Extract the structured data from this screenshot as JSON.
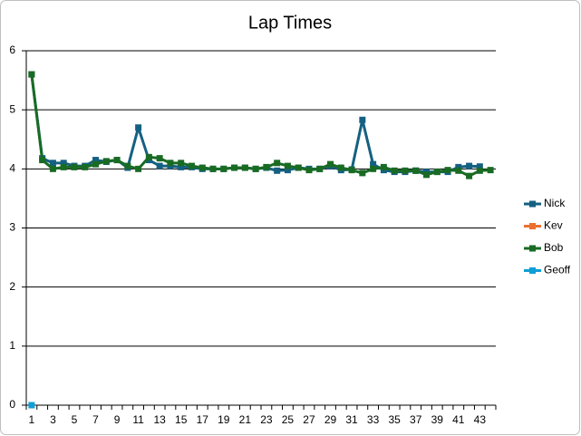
{
  "chart_data": {
    "type": "line",
    "title": "Lap Times",
    "categories": [
      1,
      null,
      3,
      null,
      5,
      null,
      7,
      null,
      9,
      null,
      11,
      null,
      13,
      null,
      15,
      null,
      17,
      null,
      19,
      null,
      21,
      null,
      23,
      null,
      25,
      null,
      27,
      null,
      29,
      null,
      31,
      null,
      33,
      null,
      35,
      null,
      37,
      null,
      39,
      null,
      41,
      null,
      43,
      null
    ],
    "series": [
      {
        "name": "Nick",
        "color": "#156082",
        "values": [
          5.6,
          4.18,
          4.1,
          4.1,
          4.05,
          4.05,
          4.15,
          4.12,
          4.15,
          4.02,
          4.7,
          4.15,
          4.05,
          4.05,
          4.03,
          4.03,
          4.0,
          4.0,
          4.0,
          4.02,
          4.02,
          4.0,
          4.02,
          3.97,
          3.98,
          4.02,
          4.0,
          4.0,
          4.05,
          3.98,
          3.99,
          4.83,
          4.08,
          3.98,
          3.95,
          3.95,
          3.97,
          3.95,
          3.95,
          3.95,
          4.03,
          4.05,
          4.04,
          null
        ]
      },
      {
        "name": "Kev",
        "color": "#E97132",
        "values": [
          null,
          null,
          null,
          null,
          null,
          null,
          null,
          null,
          null,
          null,
          null,
          null,
          null,
          null,
          null,
          null,
          null,
          null,
          null,
          null,
          null,
          null,
          null,
          null,
          null,
          null,
          null,
          null,
          null,
          null,
          null,
          null,
          null,
          null,
          null,
          null,
          null,
          null,
          null,
          null,
          null,
          null,
          null,
          null
        ]
      },
      {
        "name": "Bob",
        "color": "#196B24",
        "values": [
          5.6,
          4.15,
          4.0,
          4.03,
          4.03,
          4.03,
          4.08,
          4.13,
          4.15,
          4.05,
          4.0,
          4.2,
          4.18,
          4.1,
          4.1,
          4.05,
          4.02,
          4.0,
          4.0,
          4.02,
          4.02,
          4.0,
          4.03,
          4.1,
          4.05,
          4.02,
          3.98,
          4.0,
          4.08,
          4.02,
          3.98,
          3.93,
          4.0,
          4.03,
          3.97,
          3.97,
          3.97,
          3.9,
          3.95,
          3.98,
          3.97,
          3.88,
          3.97,
          3.98
        ]
      },
      {
        "name": "Geoff",
        "color": "#0F9ED5",
        "values": [
          0,
          null,
          null,
          null,
          null,
          null,
          null,
          null,
          null,
          null,
          null,
          null,
          null,
          null,
          null,
          null,
          null,
          null,
          null,
          null,
          null,
          null,
          null,
          null,
          null,
          null,
          null,
          null,
          null,
          null,
          null,
          null,
          null,
          null,
          null,
          null,
          null,
          null,
          null,
          null,
          null,
          null,
          null,
          null
        ]
      }
    ],
    "ylim": [
      0,
      6
    ],
    "yticks": [
      0,
      1,
      2,
      3,
      4,
      5,
      6
    ],
    "grid": true,
    "legend": "right"
  }
}
